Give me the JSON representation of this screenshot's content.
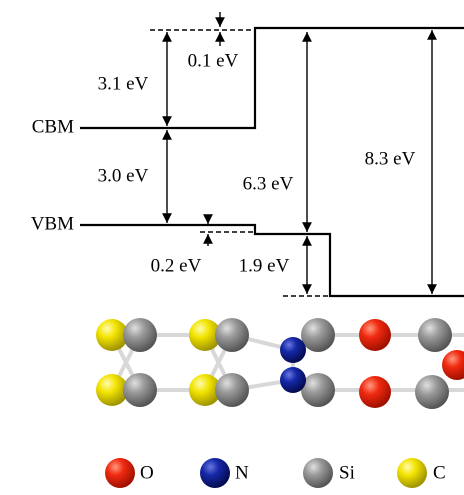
{
  "levels": {
    "cbm": "CBM",
    "vbm": "VBM"
  },
  "offsets": [
    "3.1 eV",
    "0.1 eV",
    "3.0 eV",
    "0.2 eV",
    "6.3 eV",
    "1.9 eV",
    "8.3 eV"
  ],
  "legend": [
    {
      "label": "O"
    },
    {
      "label": "N"
    },
    {
      "label": "Si"
    },
    {
      "label": "C"
    }
  ]
}
